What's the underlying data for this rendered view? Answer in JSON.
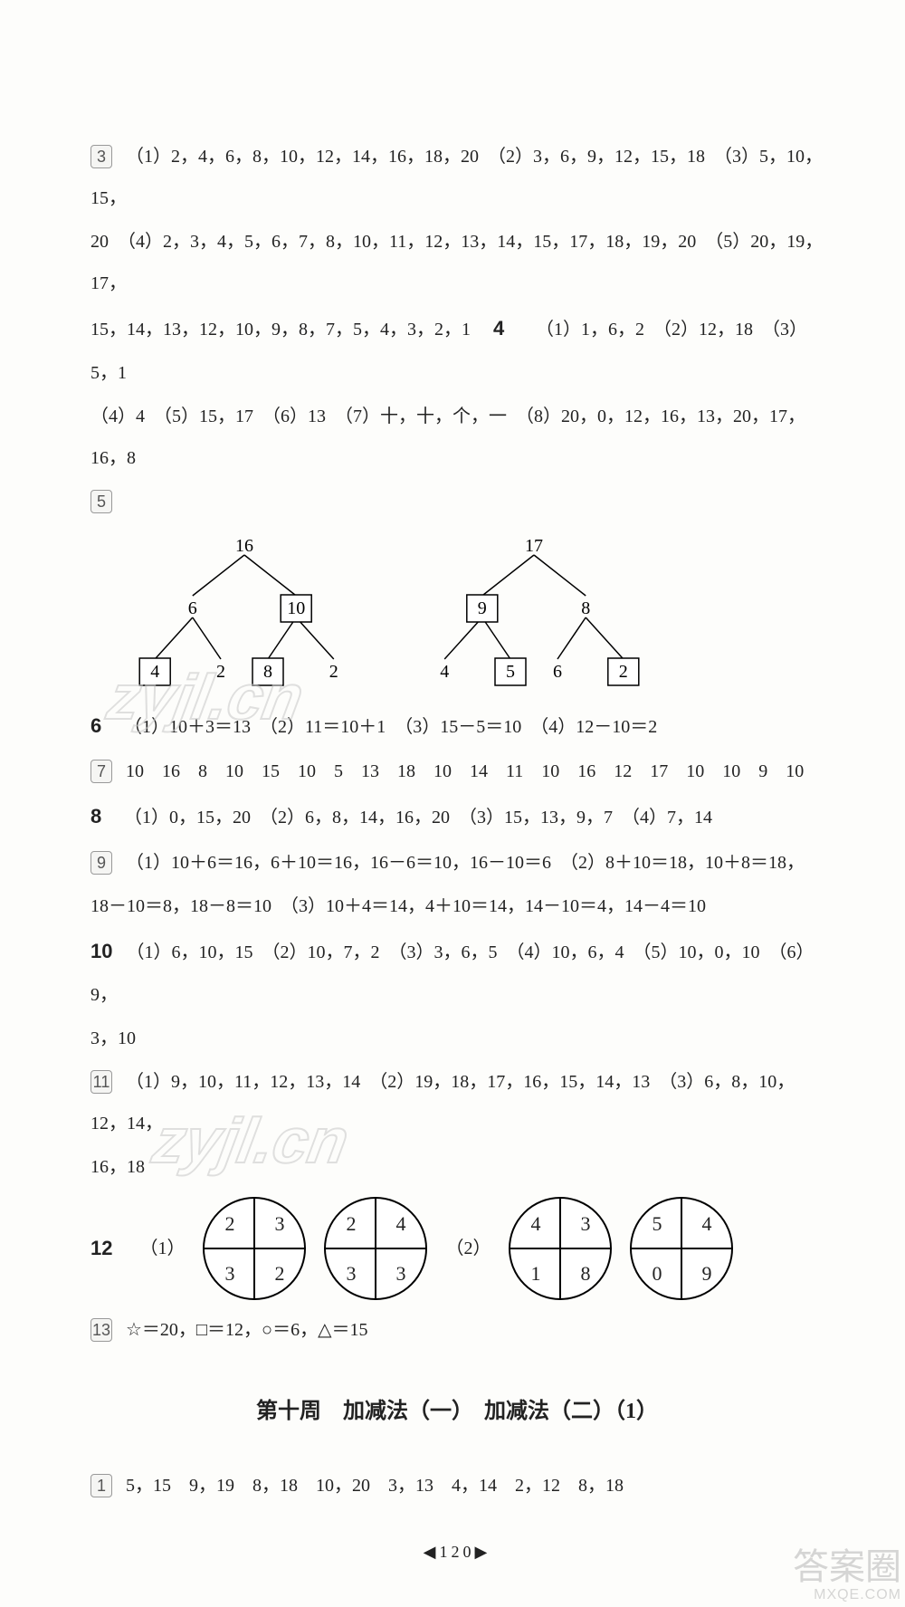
{
  "q3": {
    "p1": "（1）2，4，6，8，10，12，14，16，18，20　（2）3，6，9，12，15，18　（3）5，10，15，",
    "p2": "20　（4）2，3，4，5，6，7，8，10，11，12，13，14，15，17，18，19，20　（5）20，19，17，",
    "p3_a": "15，14，13，12，10，9，8，7，5，4，3，2，1　",
    "q4_label": "4",
    "p3_b": "　（1）1，6，2　（2）12，18　（3）5，1",
    "p4": "（4）4　（5）15，17　（6）13　（7）十，十，个，一　（8）20，0，12，16，13，20，17，16，8"
  },
  "q5_trees": [
    {
      "root": "16",
      "left": {
        "val": "6",
        "boxed": false,
        "l": {
          "val": "4",
          "boxed": true
        },
        "r": {
          "val": "2",
          "boxed": false
        }
      },
      "right": {
        "val": "10",
        "boxed": true,
        "l": {
          "val": "8",
          "boxed": true
        },
        "r": {
          "val": "2",
          "boxed": false
        }
      }
    },
    {
      "root": "17",
      "left": {
        "val": "9",
        "boxed": true,
        "l": {
          "val": "4",
          "boxed": false
        },
        "r": {
          "val": "5",
          "boxed": true
        }
      },
      "right": {
        "val": "8",
        "boxed": false,
        "l": {
          "val": "6",
          "boxed": false
        },
        "r": {
          "val": "2",
          "boxed": true
        }
      }
    }
  ],
  "q6": "（1）10＋3＝13　（2）11＝10＋1　（3）15－5＝10　（4）12－10＝2",
  "q7": "10　16　8　10　15　10　5　13　18　10　14　11　10　16　12　17　10　10　9　10",
  "q8": "（1）0，15，20　（2）6，8，14，16，20　（3）15，13，9，7　（4）7，14",
  "q9": {
    "l1": "（1）10＋6＝16，6＋10＝16，16－6＝10，16－10＝6　（2）8＋10＝18，10＋8＝18，",
    "l2": "18－10＝8，18－8＝10　（3）10＋4＝14，4＋10＝14，14－10＝4，14－4＝10"
  },
  "q10": {
    "l1": "（1）6，10，15　（2）10，7，2　（3）3，6，5　（4）10，6，4　（5）10，0，10　（6）9，",
    "l2": "3，10"
  },
  "q11": {
    "l1": "（1）9，10，11，12，13，14　（2）19，18，17，16，15，14，13　（3）6，8，10，12，14，",
    "l2": "16，18"
  },
  "q12": {
    "label1": "（1）",
    "label2": "（2）",
    "circles1": [
      {
        "tl": "2",
        "tr": "3",
        "bl": "3",
        "br": "2"
      },
      {
        "tl": "2",
        "tr": "4",
        "bl": "3",
        "br": "3"
      }
    ],
    "circles2": [
      {
        "tl": "4",
        "tr": "3",
        "bl": "1",
        "br": "8"
      },
      {
        "tl": "5",
        "tr": "4",
        "bl": "0",
        "br": "9"
      }
    ]
  },
  "q13": "☆＝20，□＝12，○＝6，△＝15",
  "section_heading": "第十周　加减法（一）　加减法（二）（1）",
  "q1_next": "5，15　9，19　8，18　10，20　3，13　4，14　2，12　8，18",
  "page_number": "120",
  "watermark_text": "zyjl.cn",
  "corner_wm_l1": "答案圈",
  "corner_wm_l2": "MXQE.COM"
}
